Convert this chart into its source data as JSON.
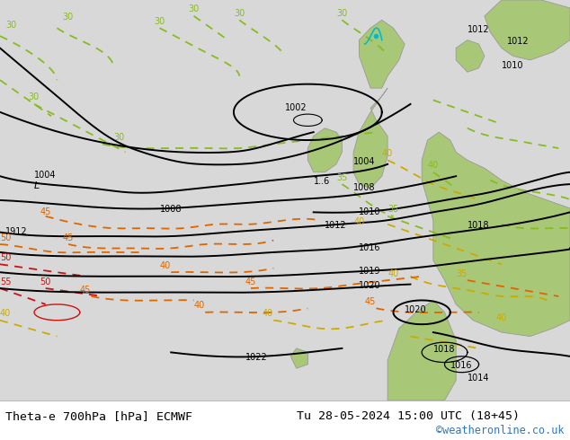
{
  "title_left": "Theta-e 700hPa [hPa] ECMWF",
  "title_right": "Tu 28-05-2024 15:00 UTC (18+45)",
  "credit": "©weatheronline.co.uk",
  "bg_color": "#d8d8d8",
  "land_green": "#a8c878",
  "footer_bg": "#ffffff",
  "coast_gray": "#999999",
  "black": "#000000",
  "green_contour": "#88bb22",
  "yellow_contour": "#ccaa00",
  "orange_contour": "#dd6600",
  "red_contour": "#cc1111",
  "cyan_color": "#00bbcc",
  "title_fontsize": 9.5,
  "credit_fontsize": 8.5,
  "credit_color": "#3377bb",
  "label_fontsize": 7.0
}
